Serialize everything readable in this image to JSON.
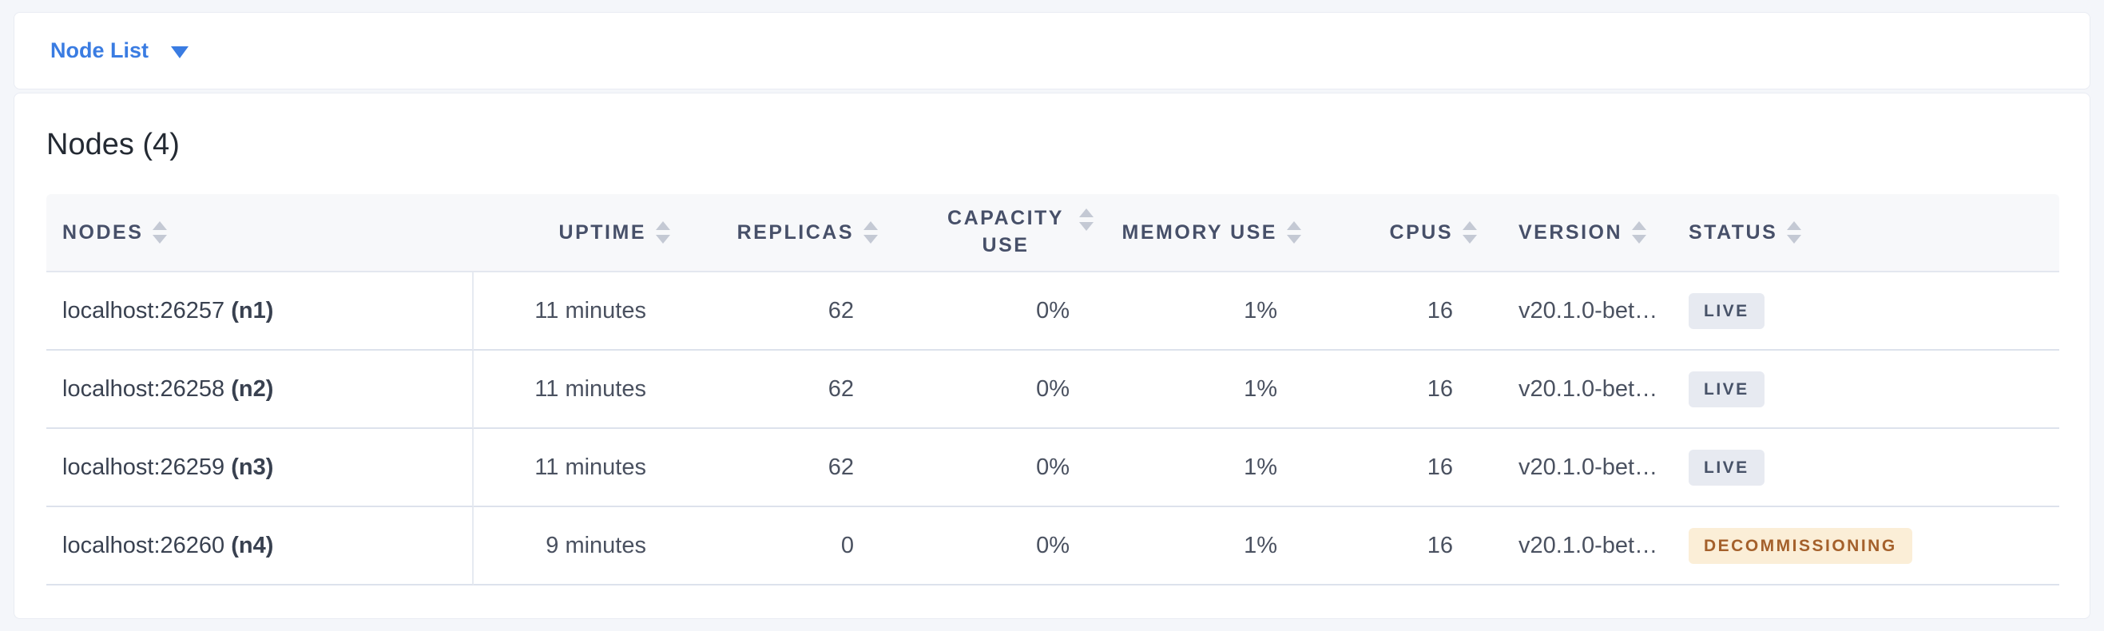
{
  "colors": {
    "accent": "#3a7ce2",
    "page_background": "#f4f6fa",
    "header_background": "#f7f8fa",
    "badge_live_background": "#e7eaf1",
    "badge_live_text": "#475268",
    "badge_decommissioning_background": "#fbeed7",
    "badge_decommissioning_text": "#a4602b"
  },
  "toolbar": {
    "view_selector": {
      "label": "Node List",
      "icon": "caret-down-icon"
    }
  },
  "main": {
    "title": "Nodes (4)",
    "table": {
      "columns": [
        {
          "key": "nodes",
          "label": "NODES",
          "align": "left",
          "sortable": true
        },
        {
          "key": "uptime",
          "label": "UPTIME",
          "align": "right",
          "sortable": true
        },
        {
          "key": "replicas",
          "label": "REPLICAS",
          "align": "right",
          "sortable": true
        },
        {
          "key": "capacity_use",
          "label": "CAPACITY USE",
          "align": "right",
          "sortable": true,
          "wrap": true
        },
        {
          "key": "memory_use",
          "label": "MEMORY USE",
          "align": "right",
          "sortable": true
        },
        {
          "key": "cpus",
          "label": "CPUS",
          "align": "right",
          "sortable": true
        },
        {
          "key": "version",
          "label": "VERSION",
          "align": "left",
          "sortable": true
        },
        {
          "key": "status",
          "label": "STATUS",
          "align": "left",
          "sortable": true
        }
      ],
      "rows": [
        {
          "address": "localhost:26257",
          "node_id": "(n1)",
          "uptime": "11 minutes",
          "replicas": "62",
          "capacity_use": "0%",
          "memory_use": "1%",
          "cpus": "16",
          "version": "v20.1.0-bet…",
          "status": "LIVE",
          "status_type": "live"
        },
        {
          "address": "localhost:26258",
          "node_id": "(n2)",
          "uptime": "11 minutes",
          "replicas": "62",
          "capacity_use": "0%",
          "memory_use": "1%",
          "cpus": "16",
          "version": "v20.1.0-bet…",
          "status": "LIVE",
          "status_type": "live"
        },
        {
          "address": "localhost:26259",
          "node_id": "(n3)",
          "uptime": "11 minutes",
          "replicas": "62",
          "capacity_use": "0%",
          "memory_use": "1%",
          "cpus": "16",
          "version": "v20.1.0-bet…",
          "status": "LIVE",
          "status_type": "live"
        },
        {
          "address": "localhost:26260",
          "node_id": "(n4)",
          "uptime": "9 minutes",
          "replicas": "0",
          "capacity_use": "0%",
          "memory_use": "1%",
          "cpus": "16",
          "version": "v20.1.0-bet…",
          "status": "DECOMMISSIONING",
          "status_type": "decommissioning"
        }
      ]
    }
  }
}
